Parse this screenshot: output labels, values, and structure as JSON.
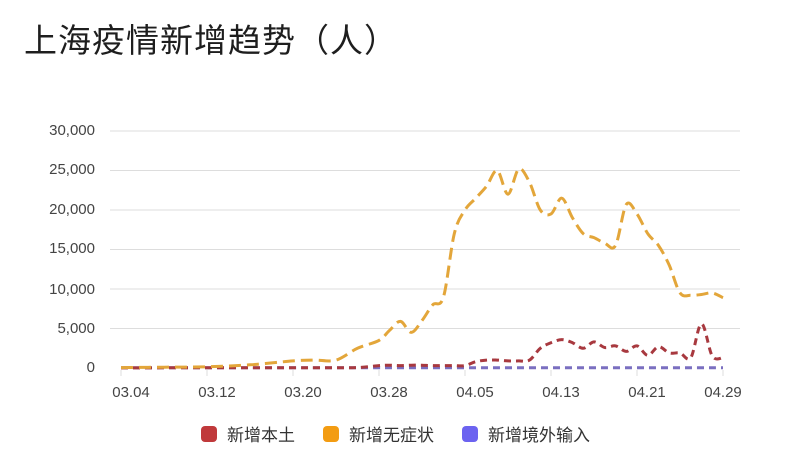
{
  "title": "上海疫情新增趋势（人）",
  "colors": {
    "local": "#c0393b",
    "asymptomatic": "#f39c12",
    "imported": "#6c63f0",
    "grid": "#dddddd"
  },
  "chart_data": {
    "type": "line",
    "title": "上海疫情新增趋势（人）",
    "xlabel": "",
    "ylabel": "",
    "ylim": [
      0,
      30000
    ],
    "yticks": [
      "30,000",
      "25,000",
      "20,000",
      "15,000",
      "10,000",
      "5,000",
      "0"
    ],
    "xticks": [
      "03.04",
      "03.12",
      "03.20",
      "03.28",
      "04.05",
      "04.13",
      "04.21",
      "04.29"
    ],
    "grid": true,
    "legend_position": "bottom",
    "line_style": "dashed",
    "x": [
      "03.04",
      "03.08",
      "03.12",
      "03.16",
      "03.20",
      "03.22",
      "03.24",
      "03.26",
      "03.28",
      "03.29",
      "03.30",
      "03.31",
      "04.01",
      "04.02",
      "04.03",
      "04.04",
      "04.05",
      "04.06",
      "04.07",
      "04.08",
      "04.09",
      "04.10",
      "04.11",
      "04.12",
      "04.13",
      "04.14",
      "04.15",
      "04.16",
      "04.17",
      "04.18",
      "04.19",
      "04.20",
      "04.21",
      "04.22",
      "04.23",
      "04.24",
      "04.25",
      "04.26",
      "04.27",
      "04.28",
      "04.29"
    ],
    "series": [
      {
        "name": "新增本土",
        "values": [
          10,
          20,
          40,
          30,
          30,
          40,
          40,
          50,
          300,
          350,
          300,
          360,
          350,
          300,
          300,
          300,
          300,
          800,
          1000,
          1000,
          900,
          900,
          1000,
          2500,
          3200,
          3600,
          3200,
          2500,
          3300,
          2600,
          2800,
          2100,
          2800,
          1600,
          2700,
          1900,
          1900,
          1300,
          5600,
          1500,
          1300
        ]
      },
      {
        "name": "新增无症状",
        "values": [
          50,
          100,
          150,
          400,
          900,
          1000,
          1000,
          2500,
          3500,
          4800,
          5900,
          4500,
          6000,
          8000,
          9000,
          17000,
          20000,
          21500,
          23000,
          25000,
          22000,
          25200,
          23500,
          20000,
          19500,
          21500,
          19000,
          17000,
          16500,
          15800,
          15500,
          20700,
          19500,
          17000,
          15500,
          13000,
          9500,
          9200,
          9300,
          9500,
          8900
        ]
      },
      {
        "name": "新增境外输入",
        "values": [
          40,
          40,
          40,
          40,
          40,
          40,
          40,
          40,
          40,
          40,
          40,
          40,
          40,
          40,
          40,
          40,
          40,
          40,
          40,
          40,
          40,
          40,
          40,
          40,
          40,
          40,
          40,
          40,
          40,
          40,
          40,
          40,
          40,
          40,
          40,
          40,
          40,
          40,
          40,
          40,
          40
        ]
      }
    ]
  },
  "legend": [
    {
      "label": "新增本土",
      "color": "#c0393b"
    },
    {
      "label": "新增无症状",
      "color": "#f39c12"
    },
    {
      "label": "新增境外输入",
      "color": "#6c63f0"
    }
  ]
}
